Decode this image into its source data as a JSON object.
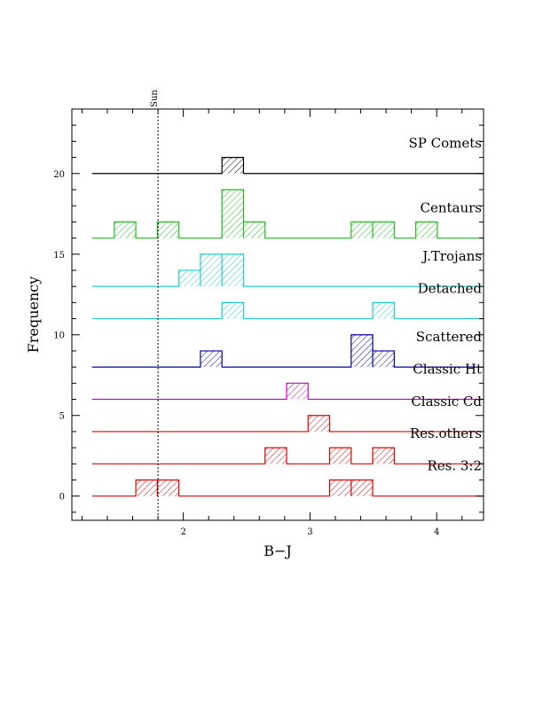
{
  "chart_data": {
    "type": "bar",
    "xlabel": "B−J",
    "ylabel": "Frequency",
    "xlim": [
      1.12,
      4.37
    ],
    "ylim": [
      -1.5,
      24
    ],
    "x_ticks": [
      "2",
      "3",
      "4"
    ],
    "y_ticks": [
      "0",
      "5",
      "10",
      "15",
      "20"
    ],
    "bin_width": 0.17,
    "bin_start": 1.28,
    "sun_line": {
      "label": "Sun",
      "x": 1.8
    },
    "series": [
      {
        "name": "SP Comets",
        "offset": 20,
        "color": "#000000",
        "bins": [
          {
            "x": 2.39,
            "count": 1
          }
        ]
      },
      {
        "name": "Centaurs",
        "offset": 16,
        "color": "#22bb22",
        "bins": [
          {
            "x": 1.54,
            "count": 1
          },
          {
            "x": 1.88,
            "count": 1
          },
          {
            "x": 2.39,
            "count": 3
          },
          {
            "x": 2.56,
            "count": 1
          },
          {
            "x": 3.41,
            "count": 1
          },
          {
            "x": 3.58,
            "count": 1
          },
          {
            "x": 3.92,
            "count": 1
          }
        ]
      },
      {
        "name": "J.Trojans",
        "offset": 13,
        "color": "#22cccc",
        "bins": [
          {
            "x": 2.05,
            "count": 1
          },
          {
            "x": 2.22,
            "count": 2
          },
          {
            "x": 2.39,
            "count": 2
          }
        ]
      },
      {
        "name": "Detached",
        "offset": 11,
        "color": "#22cccc",
        "bins": [
          {
            "x": 2.39,
            "count": 1
          },
          {
            "x": 3.58,
            "count": 1
          }
        ]
      },
      {
        "name": "Scattered",
        "offset": 8,
        "color": "#0000aa",
        "bins": [
          {
            "x": 2.22,
            "count": 1
          },
          {
            "x": 3.41,
            "count": 2
          },
          {
            "x": 3.58,
            "count": 1
          }
        ]
      },
      {
        "name": "Classic Ht",
        "offset": 6,
        "color": "#cc00cc",
        "bins": [
          {
            "x": 2.9,
            "count": 1
          }
        ]
      },
      {
        "name": "Classic Cd",
        "offset": 4,
        "color": "#dd0000",
        "bins": [
          {
            "x": 3.07,
            "count": 1
          }
        ]
      },
      {
        "name": "Res.others",
        "offset": 2,
        "color": "#dd0000",
        "bins": [
          {
            "x": 2.73,
            "count": 1
          },
          {
            "x": 3.24,
            "count": 1
          },
          {
            "x": 3.58,
            "count": 1
          }
        ]
      },
      {
        "name": "Res. 3:2",
        "offset": 0,
        "color": "#dd0000",
        "bins": [
          {
            "x": 1.71,
            "count": 1
          },
          {
            "x": 1.88,
            "count": 1
          },
          {
            "x": 3.24,
            "count": 1
          },
          {
            "x": 3.41,
            "count": 1
          }
        ]
      }
    ]
  }
}
